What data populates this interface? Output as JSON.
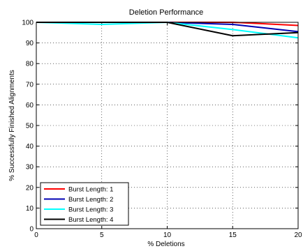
{
  "chart_data": {
    "type": "line",
    "title": "Deletion Performance",
    "xlabel": "% Deletions",
    "ylabel": "% Successfully Finished Alignments",
    "xlim": [
      0,
      20
    ],
    "ylim": [
      0,
      100
    ],
    "xticks": [
      0,
      5,
      10,
      15,
      20
    ],
    "yticks": [
      0,
      10,
      20,
      30,
      40,
      50,
      60,
      70,
      80,
      90,
      100
    ],
    "grid": true,
    "legend_position": "lower-left",
    "x": [
      0,
      5,
      10,
      15,
      20
    ],
    "series": [
      {
        "name": "Burst Length: 1",
        "color": "#ff0000",
        "values": [
          100,
          100,
          100,
          100,
          98.5
        ]
      },
      {
        "name": "Burst Length: 2",
        "color": "#0000b4",
        "values": [
          100,
          100,
          100,
          99,
          95.5
        ]
      },
      {
        "name": "Burst Length: 3",
        "color": "#00ffff",
        "values": [
          100,
          99,
          100,
          96.5,
          92.5
        ]
      },
      {
        "name": "Burst Length: 4",
        "color": "#000000",
        "values": [
          100,
          100,
          100,
          93.5,
          95
        ]
      }
    ]
  }
}
